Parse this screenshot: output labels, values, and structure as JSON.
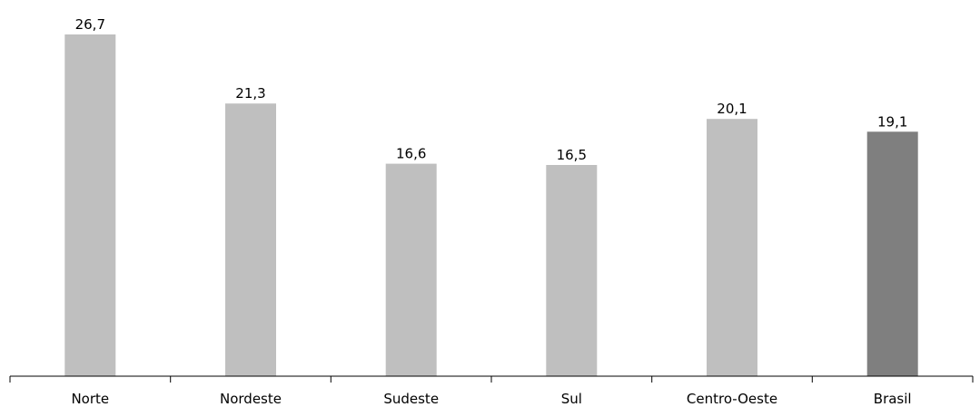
{
  "chart_data": {
    "type": "bar",
    "categories": [
      "Norte",
      "Nordeste",
      "Sudeste",
      "Sul",
      "Centro-Oeste",
      "Brasil"
    ],
    "values": [
      26.7,
      21.3,
      16.6,
      16.5,
      20.1,
      19.1
    ],
    "value_labels": [
      "26,7",
      "21,3",
      "16,6",
      "16,5",
      "20,1",
      "19,1"
    ],
    "ylim": [
      0,
      28
    ],
    "grid": false,
    "legend": "none",
    "colors": {
      "bar": "#bfbfbf",
      "highlight_bar": "#7f7f7f",
      "axis": "#000000"
    },
    "highlight_category": "Brasil"
  }
}
